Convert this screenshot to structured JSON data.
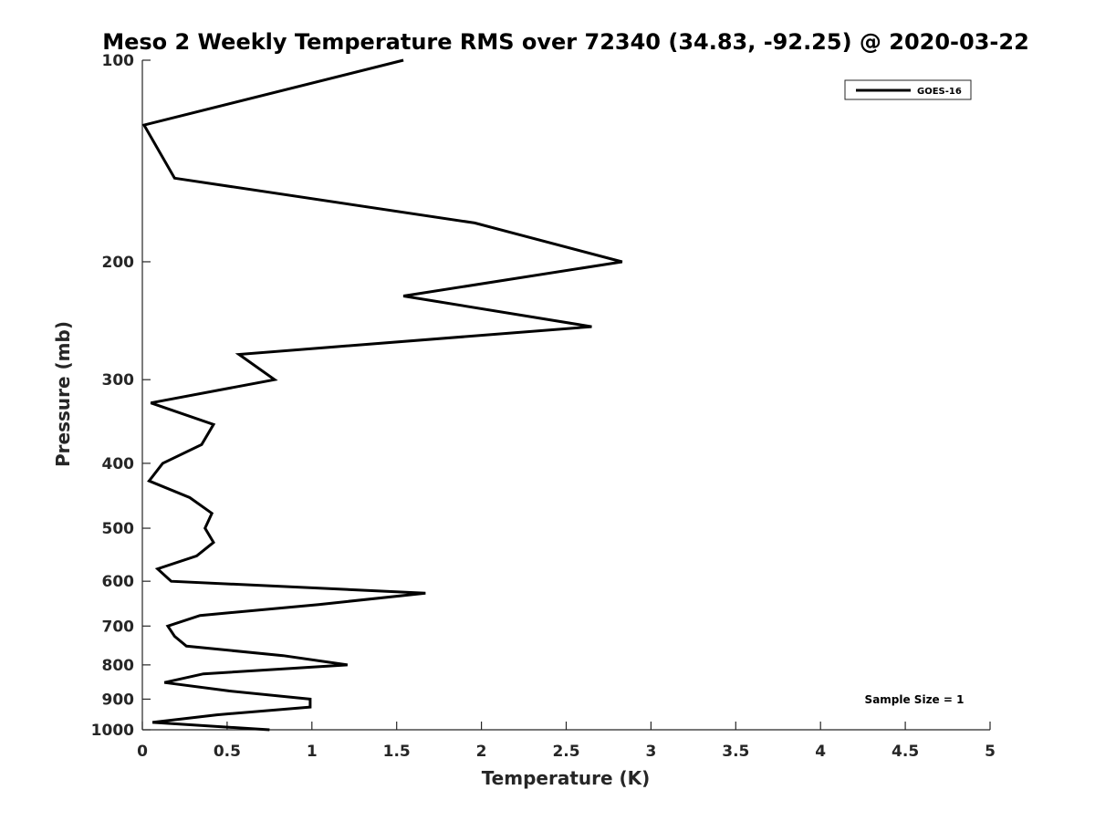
{
  "chart_data": {
    "type": "line",
    "title": "Meso 2 Weekly Temperature RMS over 72340 (34.83, -92.25) @ 2020-03-22",
    "xlabel": "Temperature (K)",
    "ylabel": "Pressure (mb)",
    "xlim": [
      0,
      5
    ],
    "ylim": [
      100,
      1000
    ],
    "yscale": "log",
    "y_reversed": true,
    "xticks": [
      0,
      0.5,
      1,
      1.5,
      2,
      2.5,
      3,
      3.5,
      4,
      4.5,
      5
    ],
    "xtick_labels": [
      "0",
      "0.5",
      "1",
      "1.5",
      "2",
      "2.5",
      "3",
      "3.5",
      "4",
      "4.5",
      "5"
    ],
    "yticks": [
      100,
      200,
      300,
      400,
      500,
      600,
      700,
      800,
      900,
      1000
    ],
    "ytick_labels": [
      "100",
      "200",
      "300",
      "400",
      "500",
      "600",
      "700",
      "800",
      "900",
      "1000"
    ],
    "grid": false,
    "legend_position": "top-right",
    "annotation": "Sample Size = 1",
    "line_color": "#000000",
    "series": [
      {
        "name": "GOES-16",
        "points": [
          {
            "x": 1.54,
            "y": 100
          },
          {
            "x": 0.01,
            "y": 125
          },
          {
            "x": 0.19,
            "y": 150
          },
          {
            "x": 1.96,
            "y": 175
          },
          {
            "x": 2.83,
            "y": 200
          },
          {
            "x": 1.54,
            "y": 225
          },
          {
            "x": 2.65,
            "y": 250
          },
          {
            "x": 0.57,
            "y": 275
          },
          {
            "x": 0.78,
            "y": 300
          },
          {
            "x": 0.05,
            "y": 325
          },
          {
            "x": 0.42,
            "y": 350
          },
          {
            "x": 0.35,
            "y": 375
          },
          {
            "x": 0.12,
            "y": 400
          },
          {
            "x": 0.04,
            "y": 425
          },
          {
            "x": 0.28,
            "y": 450
          },
          {
            "x": 0.41,
            "y": 475
          },
          {
            "x": 0.37,
            "y": 500
          },
          {
            "x": 0.42,
            "y": 525
          },
          {
            "x": 0.32,
            "y": 550
          },
          {
            "x": 0.09,
            "y": 575
          },
          {
            "x": 0.17,
            "y": 600
          },
          {
            "x": 1.67,
            "y": 625
          },
          {
            "x": 1.04,
            "y": 650
          },
          {
            "x": 0.34,
            "y": 675
          },
          {
            "x": 0.15,
            "y": 700
          },
          {
            "x": 0.19,
            "y": 725
          },
          {
            "x": 0.26,
            "y": 750
          },
          {
            "x": 0.83,
            "y": 775
          },
          {
            "x": 1.21,
            "y": 800
          },
          {
            "x": 0.36,
            "y": 825
          },
          {
            "x": 0.13,
            "y": 850
          },
          {
            "x": 0.51,
            "y": 875
          },
          {
            "x": 0.99,
            "y": 900
          },
          {
            "x": 0.99,
            "y": 925
          },
          {
            "x": 0.44,
            "y": 950
          },
          {
            "x": 0.06,
            "y": 975
          },
          {
            "x": 0.75,
            "y": 1000
          }
        ]
      }
    ]
  }
}
